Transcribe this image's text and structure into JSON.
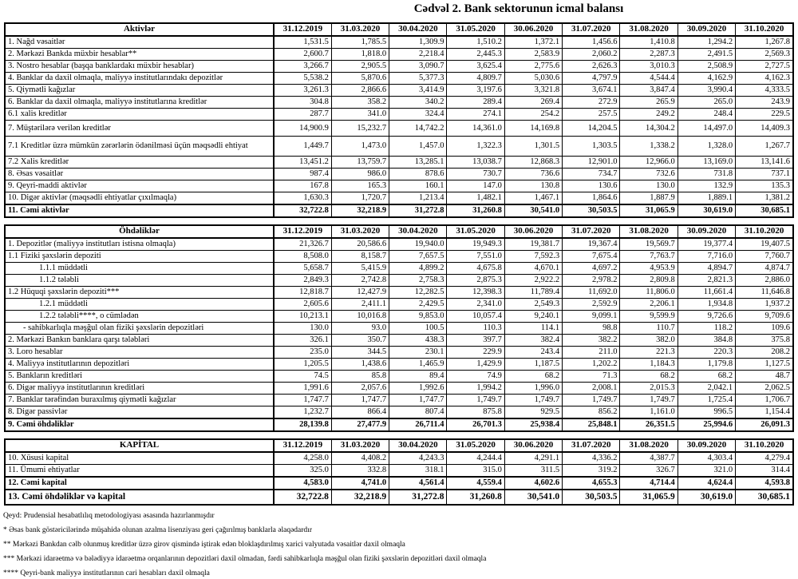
{
  "title": "Cədvəl 2. Bank sektorunun icmal balansı",
  "columns": [
    "31.12.2019",
    "31.03.2020",
    "30.04.2020",
    "31.05.2020",
    "30.06.2020",
    "31.07.2020",
    "31.08.2020",
    "30.09.2020",
    "31.10.2020"
  ],
  "sections": {
    "assets": {
      "title": "Aktivlər",
      "rows": [
        {
          "label": "1. Nağd vəsaitlər",
          "v": [
            "1,531.5",
            "1,785.5",
            "1,309.9",
            "1,510.2",
            "1,372.1",
            "1,456.6",
            "1,410.8",
            "1,294.2",
            "1,267.8"
          ]
        },
        {
          "label": "2. Mərkəzi Bankda müxbir hesablar**",
          "v": [
            "2,600.7",
            "1,818.0",
            "2,218.4",
            "2,445.3",
            "2,583.9",
            "2,060.2",
            "2,287.3",
            "2,491.5",
            "2,569.3"
          ]
        },
        {
          "label": "3. Nostro hesablar (başqa banklardakı müxbir hesablar)",
          "v": [
            "3,266.7",
            "2,905.5",
            "3,090.7",
            "3,625.4",
            "2,775.6",
            "2,626.3",
            "3,010.3",
            "2,508.9",
            "2,727.5"
          ]
        },
        {
          "label": "4. Banklar da daxil olmaqla, maliyyə institutlarındakı depozitlər",
          "v": [
            "5,538.2",
            "5,870.6",
            "5,377.3",
            "4,809.7",
            "5,030.6",
            "4,797.9",
            "4,544.4",
            "4,162.9",
            "4,162.3"
          ]
        },
        {
          "label": "5. Qiymətli kağızlar",
          "v": [
            "3,261.3",
            "2,866.6",
            "3,414.9",
            "3,197.6",
            "3,321.8",
            "3,674.1",
            "3,847.4",
            "3,990.4",
            "4,333.5"
          ]
        },
        {
          "label": "6. Banklar da daxil olmaqla, maliyyə institutlarına kreditlər",
          "v": [
            "304.8",
            "358.2",
            "340.2",
            "289.4",
            "269.4",
            "272.9",
            "265.9",
            "265.0",
            "243.9"
          ]
        },
        {
          "label": "6.1 xalis kreditlər",
          "v": [
            "287.7",
            "341.0",
            "324.4",
            "274.1",
            "254.2",
            "257.5",
            "249.2",
            "248.4",
            "229.5"
          ]
        },
        {
          "label": "7. Müştərilərə verilən kreditlər",
          "cls": "tall",
          "v": [
            "14,900.9",
            "15,232.7",
            "14,742.2",
            "14,361.0",
            "14,169.8",
            "14,204.5",
            "14,304.2",
            "14,497.0",
            "14,409.3"
          ]
        },
        {
          "label": "7.1 Kreditlər üzrə mümkün zərərlərin ödənilməsi üçün məqsədli ehtiyat",
          "cls": "taller",
          "v": [
            "1,449.7",
            "1,473.0",
            "1,457.0",
            "1,322.3",
            "1,301.5",
            "1,303.5",
            "1,338.2",
            "1,328.0",
            "1,267.7"
          ]
        },
        {
          "label": "7.2 Xalis kreditlər",
          "v": [
            "13,451.2",
            "13,759.7",
            "13,285.1",
            "13,038.7",
            "12,868.3",
            "12,901.0",
            "12,966.0",
            "13,169.0",
            "13,141.6"
          ]
        },
        {
          "label": "8.  Əsas vəsaitlər",
          "v": [
            "987.4",
            "986.0",
            "878.6",
            "730.7",
            "736.6",
            "734.7",
            "732.6",
            "731.8",
            "737.1"
          ]
        },
        {
          "label": "9. Qeyri-maddi aktivlər",
          "v": [
            "167.8",
            "165.3",
            "160.1",
            "147.0",
            "130.8",
            "130.6",
            "130.0",
            "132.9",
            "135.3"
          ]
        },
        {
          "label": "10. Digər aktivlər (məqsədli ehtiyatlar çıxılmaqla)",
          "v": [
            "1,630.3",
            "1,720.7",
            "1,213.4",
            "1,482.1",
            "1,467.1",
            "1,864.6",
            "1,887.9",
            "1,889.1",
            "1,381.2"
          ]
        },
        {
          "label": "11. Cəmi aktivlər",
          "cls": "total",
          "v": [
            "32,722.8",
            "32,218.9",
            "31,272.8",
            "31,260.8",
            "30,541.0",
            "30,503.5",
            "31,065.9",
            "30,619.0",
            "30,685.1"
          ]
        }
      ]
    },
    "liabilities": {
      "title": "Öhdəliklər",
      "rows": [
        {
          "label": "1. Depozitlər (maliyyə institutları istisna olmaqla)",
          "v": [
            "21,326.7",
            "20,586.6",
            "19,940.0",
            "19,949.3",
            "19,381.7",
            "19,367.4",
            "19,569.7",
            "19,377.4",
            "19,407.5"
          ]
        },
        {
          "label": "1.1 Fiziki şəxslərin depoziti",
          "v": [
            "8,508.0",
            "8,158.7",
            "7,657.5",
            "7,551.0",
            "7,592.3",
            "7,675.4",
            "7,763.7",
            "7,716.0",
            "7,760.7"
          ]
        },
        {
          "label": "1.1.1 müddətli",
          "ind": 2,
          "v": [
            "5,658.7",
            "5,415.9",
            "4,899.2",
            "4,675.8",
            "4,670.1",
            "4,697.2",
            "4,953.9",
            "4,894.7",
            "4,874.7"
          ]
        },
        {
          "label": "1.1.2 tələbli",
          "ind": 2,
          "v": [
            "2,849.3",
            "2,742.8",
            "2,758.3",
            "2,875.3",
            "2,922.2",
            "2,978.2",
            "2,809.8",
            "2,821.3",
            "2,886.0"
          ]
        },
        {
          "label": "1.2 Hüquqi şəxslərin depoziti***",
          "v": [
            "12,818.7",
            "12,427.9",
            "12,282.5",
            "12,398.3",
            "11,789.4",
            "11,692.0",
            "11,806.0",
            "11,661.4",
            "11,646.8"
          ]
        },
        {
          "label": "1.2.1 müddətli",
          "ind": 2,
          "v": [
            "2,605.6",
            "2,411.1",
            "2,429.5",
            "2,341.0",
            "2,549.3",
            "2,592.9",
            "2,206.1",
            "1,934.8",
            "1,937.2"
          ]
        },
        {
          "label": "1.2.2 tələbli****, o cümlədən",
          "ind": 2,
          "v": [
            "10,213.1",
            "10,016.8",
            "9,853.0",
            "10,057.4",
            "9,240.1",
            "9,099.1",
            "9,599.9",
            "9,726.6",
            "9,709.6"
          ]
        },
        {
          "label": "- sahibkarlıqla məşğul olan fiziki şəxslərin depozitləri",
          "ind": 1,
          "v": [
            "130.0",
            "93.0",
            "100.5",
            "110.3",
            "114.1",
            "98.8",
            "110.7",
            "118.2",
            "109.6"
          ]
        },
        {
          "label": "2. Mərkəzi Bankın banklara qarşı tələbləri",
          "v": [
            "326.1",
            "350.7",
            "438.3",
            "397.7",
            "382.4",
            "382.2",
            "382.0",
            "384.8",
            "375.8"
          ]
        },
        {
          "label": "3. Loro hesablar",
          "v": [
            "235.0",
            "344.5",
            "230.1",
            "229.9",
            "243.4",
            "211.0",
            "221.3",
            "220.3",
            "208.2"
          ]
        },
        {
          "label": "4. Maliyyə institutlarının depozitləri",
          "v": [
            "1,205.5",
            "1,438.6",
            "1,465.9",
            "1,429.9",
            "1,187.5",
            "1,202.2",
            "1,184.3",
            "1,179.8",
            "1,127.5"
          ]
        },
        {
          "label": "5. Bankların kreditləri",
          "v": [
            "74.5",
            "85.8",
            "89.4",
            "74.9",
            "68.2",
            "71.3",
            "68.2",
            "68.2",
            "48.7"
          ]
        },
        {
          "label": "6. Digər maliyyə institutlarının kreditləri",
          "v": [
            "1,991.6",
            "2,057.6",
            "1,992.6",
            "1,994.2",
            "1,996.0",
            "2,008.1",
            "2,015.3",
            "2,042.1",
            "2,062.5"
          ]
        },
        {
          "label": "7. Banklar tərəfindən buraxılmış qiymətli kağızlar",
          "v": [
            "1,747.7",
            "1,747.7",
            "1,747.7",
            "1,749.7",
            "1,749.7",
            "1,749.7",
            "1,749.7",
            "1,725.4",
            "1,706.7"
          ]
        },
        {
          "label": "8. Digər passivlər",
          "v": [
            "1,232.7",
            "866.4",
            "807.4",
            "875.8",
            "929.5",
            "856.2",
            "1,161.0",
            "996.5",
            "1,154.4"
          ]
        },
        {
          "label": "9. Cəmi öhdəliklər",
          "cls": "total",
          "v": [
            "28,139.8",
            "27,477.9",
            "26,711.4",
            "26,701.3",
            "25,938.4",
            "25,848.1",
            "26,351.5",
            "25,994.6",
            "26,091.3"
          ]
        }
      ]
    },
    "capital": {
      "title": "KAPİTAL",
      "rows": [
        {
          "label": "10. Xüsusi kapital",
          "v": [
            "4,258.0",
            "4,408.2",
            "4,243.3",
            "4,244.4",
            "4,291.1",
            "4,336.2",
            "4,387.7",
            "4,303.4",
            "4,279.4"
          ]
        },
        {
          "label": "11. Ümumi ehtiyatlar",
          "v": [
            "325.0",
            "332.8",
            "318.1",
            "315.0",
            "311.5",
            "319.2",
            "326.7",
            "321.0",
            "314.4"
          ]
        },
        {
          "label": "12. Cəmi kapital",
          "cls": "total",
          "v": [
            "4,583.0",
            "4,741.0",
            "4,561.4",
            "4,559.4",
            "4,602.6",
            "4,655.3",
            "4,714.4",
            "4,624.4",
            "4,593.8"
          ]
        },
        {
          "label": "13. Cəmi öhdəliklər və kapital",
          "cls": "grand",
          "v": [
            "32,722.8",
            "32,218.9",
            "31,272.8",
            "31,260.8",
            "30,541.0",
            "30,503.5",
            "31,065.9",
            "30,619.0",
            "30,685.1"
          ]
        }
      ]
    }
  },
  "notes": [
    "Qeyd: Prudensial hesabatlılıq metodologiyası əsasında hazırlanmışdır",
    "* Əsas bank göstəricilərində müşahidə olunan azalma lisenziyası geri çağırılmış banklarla əlaqədardır",
    "** Mərkəzi Bankdan cəlb olunmuş kreditlər üzrə girov qismində iştirak edən bloklaşdırılmış xarici valyutada vəsaitlər daxil olmaqla",
    "*** Mərkəzi idarəetmə və bələdiyyə idarəetmə orqanlarının depozitləri daxil olmadan, fərdi sahibkarlıqla məşğul olan fiziki şəxslərin depozitləri daxil olmaqla",
    "**** Qeyri-bank maliyyə institutlarının cari hesabları daxil olmaqla"
  ]
}
